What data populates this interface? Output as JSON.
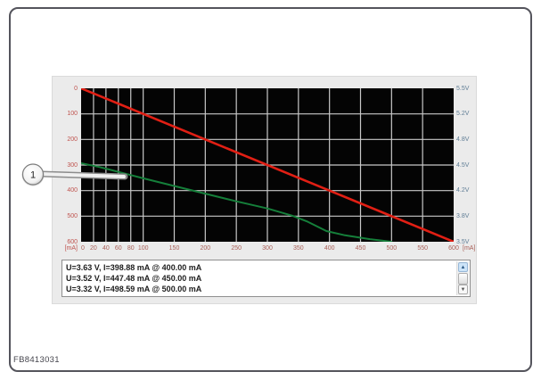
{
  "figure": {
    "code": "FB8413031",
    "callout_number": "1"
  },
  "colors": {
    "axis_left": "#bf534e",
    "axis_bottom": "#a96058",
    "axis_right": "#5f7d95",
    "grid": "#c8c8c8",
    "red_series": "#e11f14",
    "green_series": "#157f3a",
    "chart_bg": "#040404"
  },
  "chart_data": {
    "type": "line",
    "title": "",
    "x_axis": {
      "unit_label": "[mA]",
      "range": [
        0,
        600
      ],
      "ticks": [
        0,
        20,
        40,
        60,
        80,
        100,
        150,
        200,
        250,
        300,
        350,
        400,
        450,
        500,
        550,
        600
      ]
    },
    "y_axis_left": {
      "unit_label": "[mA]",
      "range": [
        0,
        600
      ],
      "ticks": [
        0,
        100,
        200,
        300,
        400,
        500,
        600
      ]
    },
    "y_axis_right": {
      "labels": [
        "5.5V",
        "5.2V",
        "4.8V",
        "4.5V",
        "4.2V",
        "3.8V",
        "3.5V"
      ],
      "tick_positions": [
        0,
        100,
        200,
        300,
        400,
        500,
        600
      ]
    },
    "grid": true,
    "series": [
      {
        "name": "voltage-ramp-red",
        "color_key": "red_series",
        "width": 2.6,
        "points": [
          [
            0,
            0
          ],
          [
            600,
            600
          ]
        ]
      },
      {
        "name": "current-reading-green",
        "color_key": "green_series",
        "width": 2,
        "points": [
          [
            0,
            293
          ],
          [
            30,
            308
          ],
          [
            60,
            327
          ],
          [
            100,
            352
          ],
          [
            150,
            382
          ],
          [
            200,
            412
          ],
          [
            250,
            442
          ],
          [
            300,
            470
          ],
          [
            340,
            498
          ],
          [
            365,
            522
          ],
          [
            395,
            558
          ],
          [
            425,
            575
          ],
          [
            465,
            590
          ],
          [
            500,
            600
          ]
        ]
      }
    ]
  },
  "readouts": {
    "lines": [
      "U=3.63 V, I=398.88 mA @ 400.00 mA",
      "U=3.52 V, I=447.48 mA @ 450.00 mA",
      "U=3.32 V, I=498.59 mA @ 500.00 mA"
    ]
  },
  "scrollbar": {
    "up_glyph": "▲",
    "down_glyph": "▼"
  }
}
